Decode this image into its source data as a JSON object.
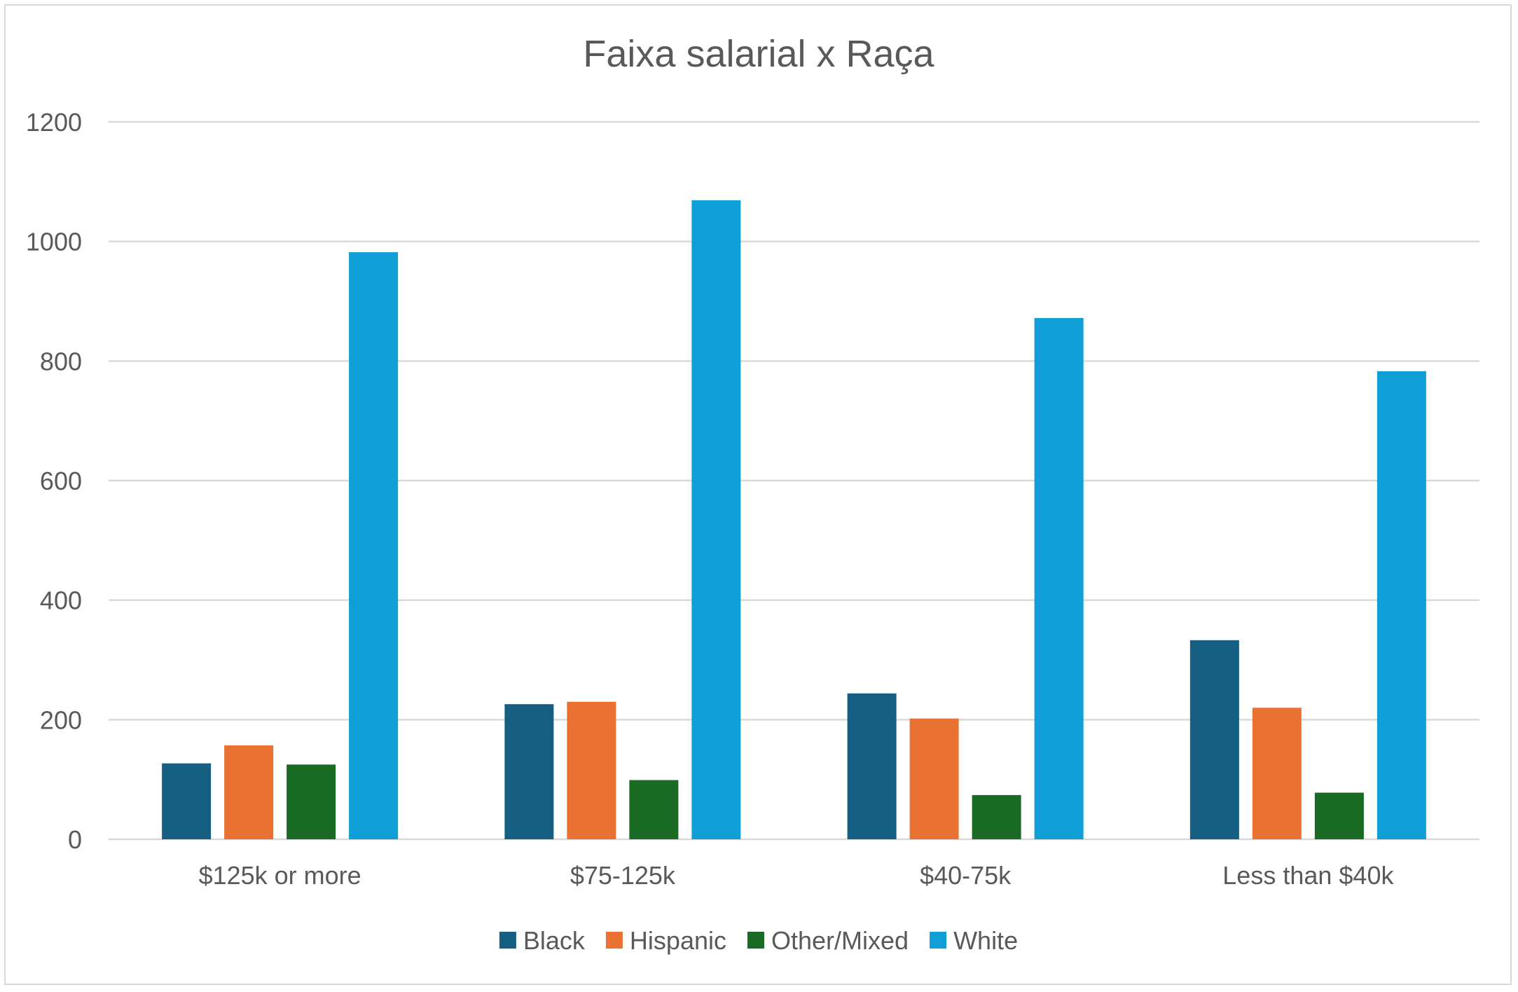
{
  "chart_data": {
    "type": "bar",
    "title": "Faixa salarial x Raça",
    "xlabel": "",
    "ylabel": "",
    "categories": [
      "$125k or more",
      "$75-125k",
      "$40-75k",
      "Less than $40k"
    ],
    "series": [
      {
        "name": "Black",
        "color": "#156082",
        "values": [
          127,
          226,
          244,
          333
        ]
      },
      {
        "name": "Hispanic",
        "color": "#e97132",
        "values": [
          157,
          230,
          202,
          220
        ]
      },
      {
        "name": "Other/Mixed",
        "color": "#196b24",
        "values": [
          125,
          99,
          74,
          78
        ]
      },
      {
        "name": "White",
        "color": "#0f9ed5",
        "values": [
          982,
          1069,
          872,
          783
        ]
      }
    ],
    "ylim": [
      0,
      1200
    ],
    "yticks": [
      0,
      200,
      400,
      600,
      800,
      1000,
      1200
    ],
    "grid": true,
    "legend_position": "bottom"
  }
}
